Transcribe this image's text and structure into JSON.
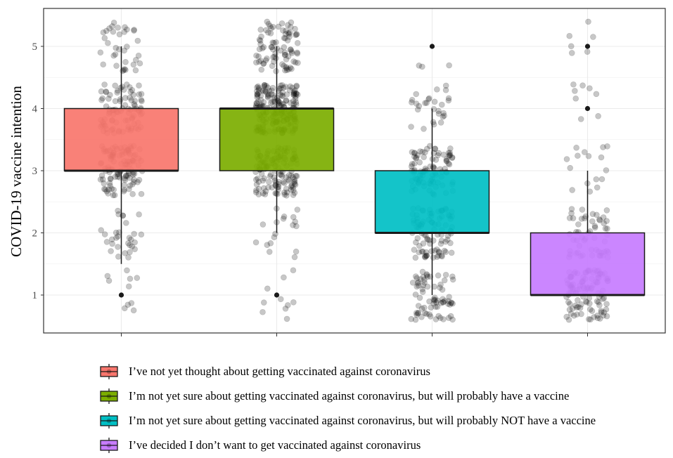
{
  "chart_data": {
    "type": "box",
    "ylabel": "COVID-19 vaccine intention",
    "xlabel": "",
    "ylim": [
      0.4,
      5.6
    ],
    "yticks": [
      1,
      2,
      3,
      4,
      5
    ],
    "grid": true,
    "legend_position": "bottom",
    "series": [
      {
        "name": "I’ve not yet thought about getting vaccinated against coronavirus",
        "color": "#F8766D",
        "box": {
          "q1": 3,
          "median": 3,
          "q3": 4,
          "whisker_low": 1.5,
          "whisker_high": 5
        },
        "outliers": [
          1
        ]
      },
      {
        "name": "I’m not yet sure about getting vaccinated against coronavirus, but will probably have a vaccine",
        "color": "#7CAE00",
        "box": {
          "q1": 3,
          "median": 4,
          "q3": 4,
          "whisker_low": 2,
          "whisker_high": 5
        },
        "outliers": [
          1
        ]
      },
      {
        "name": "I’m not yet sure about getting vaccinated against coronavirus, but will probably NOT have a vaccine",
        "color": "#00BFC4",
        "box": {
          "q1": 2,
          "median": 2,
          "q3": 3,
          "whisker_low": 1,
          "whisker_high": 4
        },
        "outliers": [
          5
        ]
      },
      {
        "name": "I’ve decided I don’t want to get vaccinated against coronavirus",
        "color": "#C77CFF",
        "box": {
          "q1": 1,
          "median": 1,
          "q3": 2,
          "whisker_low": 1,
          "whisker_high": 3
        },
        "outliers": [
          4,
          5
        ]
      }
    ]
  }
}
